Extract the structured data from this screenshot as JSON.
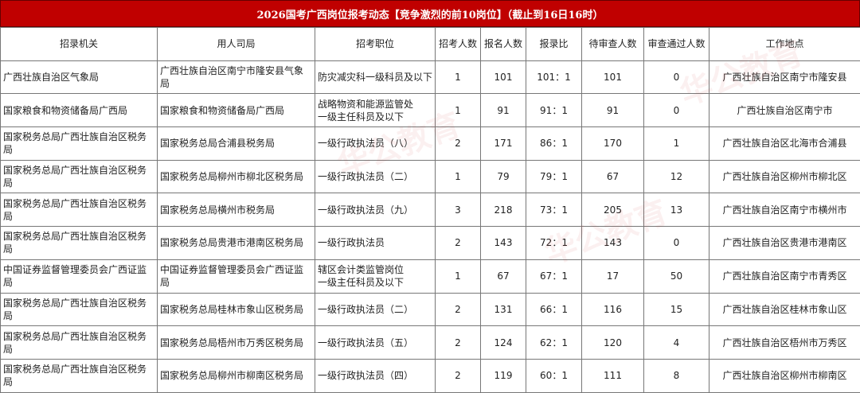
{
  "title": "2026国考广西岗位报考动态【竞争激烈的前10岗位】（截止到16日16时）",
  "headers": [
    "招录机关",
    "用人司局",
    "招考职位",
    "招考人数",
    "报名人数",
    "报录比",
    "待审查人数",
    "审查通过人数",
    "工作地点"
  ],
  "rows": [
    [
      "广西壮族自治区气象局",
      "广西壮族自治区南宁市隆安县气象局",
      "防灾减灾科一级科员及以下",
      "1",
      "101",
      "101：1",
      "101",
      "0",
      "广西壮族自治区南宁市隆安县"
    ],
    [
      "国家粮食和物资储备局广西局",
      "国家粮食和物资储备局广西局",
      "战略物资和能源监管处\n一级主任科员及以下",
      "1",
      "91",
      "91：1",
      "91",
      "0",
      "广西壮族自治区南宁市"
    ],
    [
      "国家税务总局广西壮族自治区税务局",
      "国家税务总局合浦县税务局",
      "一级行政执法员（八）",
      "2",
      "171",
      "86：1",
      "170",
      "1",
      "广西壮族自治区北海市合浦县"
    ],
    [
      "国家税务总局广西壮族自治区税务局",
      "国家税务总局柳州市柳北区税务局",
      "一级行政执法员（二）",
      "1",
      "79",
      "79：1",
      "67",
      "12",
      "广西壮族自治区柳州市柳北区"
    ],
    [
      "国家税务总局广西壮族自治区税务局",
      "国家税务总局横州市税务局",
      "一级行政执法员（九）",
      "3",
      "218",
      "73：1",
      "205",
      "13",
      "广西壮族自治区南宁市横州市"
    ],
    [
      "国家税务总局广西壮族自治区税务局",
      "国家税务总局贵港市港南区税务局",
      "一级行政执法员",
      "2",
      "143",
      "72：1",
      "143",
      "0",
      "广西壮族自治区贵港市港南区"
    ],
    [
      "中国证券监督管理委员会广西证监局",
      "中国证券监督管理委员会广西证监局",
      "辖区会计类监管岗位\n一级主任科员及以下",
      "1",
      "67",
      "67：1",
      "17",
      "50",
      "广西壮族自治区南宁市青秀区"
    ],
    [
      "国家税务总局广西壮族自治区税务局",
      "国家税务总局桂林市象山区税务局",
      "一级行政执法员（二）",
      "2",
      "131",
      "66：1",
      "116",
      "15",
      "广西壮族自治区桂林市象山区"
    ],
    [
      "国家税务总局广西壮族自治区税务局",
      "国家税务总局梧州市万秀区税务局",
      "一级行政执法员（五）",
      "2",
      "124",
      "62：1",
      "120",
      "4",
      "广西壮族自治区梧州市万秀区"
    ],
    [
      "国家税务总局广西壮族自治区税务局",
      "国家税务总局柳州市柳南区税务局",
      "一级行政执法员（四）",
      "2",
      "119",
      "60：1",
      "111",
      "8",
      "广西壮族自治区柳州市柳南区"
    ]
  ],
  "colors": {
    "title_bg": "#c00000"
  }
}
